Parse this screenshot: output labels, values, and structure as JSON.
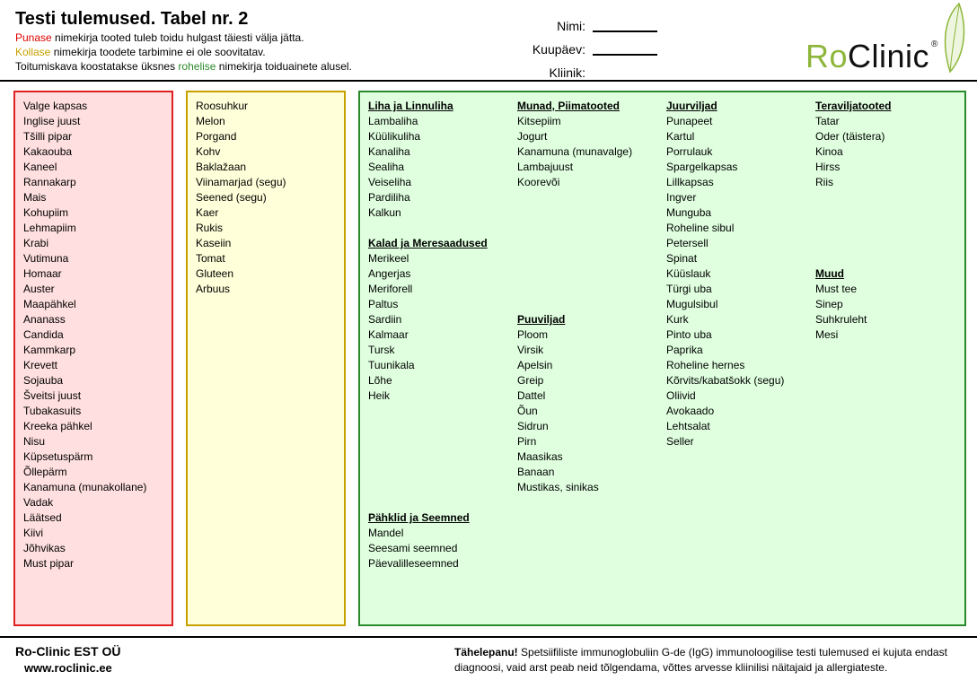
{
  "header": {
    "title": "Testi tulemused. Tabel nr. 2",
    "instructions": {
      "red_word": "Punase",
      "red_rest": " nimekirja tooted tuleb toidu hulgast täiesti välja jätta.",
      "yellow_word": "Kollase",
      "yellow_rest": " nimekirja toodete tarbimine ei ole soovitatav.",
      "green_pre": "Toitumiskava koostatakse üksnes ",
      "green_word": "rohelise",
      "green_rest": " nimekirja toiduainete alusel."
    },
    "fields": {
      "name_label": "Nimi:",
      "date_label": "Kuupäev:",
      "clinic_label": "Kliinik:"
    },
    "logo": {
      "ro": "Ro",
      "clinic": "Clinic",
      "reg": "®"
    }
  },
  "colors": {
    "red": "#e02020",
    "red_bg": "#ffdfdf",
    "yellow": "#c8a000",
    "yellow_bg": "#ffffd9",
    "green": "#2a8a2a",
    "green_bg": "#dfffdf",
    "logo_green": "#8db63a"
  },
  "red_list": [
    "Valge kapsas",
    "Inglise juust",
    "Tšilli pipar",
    "Kakaouba",
    "Kaneel",
    "Rannakarp",
    "Mais",
    "Kohupiim",
    "Lehmapiim",
    "Krabi",
    "Vutimuna",
    "Homaar",
    "Auster",
    "Maapähkel",
    "Ananass",
    "Candida",
    "Kammkarp",
    "Krevett",
    "Sojauba",
    "Šveitsi juust",
    "Tubakasuits",
    "Kreeka pähkel",
    "Nisu",
    "Küpsetuspärm",
    "Õllepärm",
    "Kanamuna (munakollane)",
    "Vadak",
    "Läätsed",
    "Kiivi",
    "Jõhvikas",
    "Must pipar"
  ],
  "yellow_list": [
    "Roosuhkur",
    "Melon",
    "Porgand",
    "Kohv",
    "Baklažaan",
    "Viinamarjad (segu)",
    "Seened (segu)",
    "Kaer",
    "Rukis",
    "Kaseiin",
    "Tomat",
    "Gluteen",
    "Arbuus"
  ],
  "green": {
    "meat": {
      "heading": "Liha ja Linnuliha",
      "items": [
        "Lambaliha",
        "Küülikuliha",
        "Kanaliha",
        "Sealiha",
        "Veiseliha",
        "Pardiliha",
        "Kalkun"
      ]
    },
    "fish": {
      "heading": "Kalad ja Meresaadused",
      "items": [
        "Merikeel",
        "Angerjas",
        "Meriforell",
        "Paltus",
        "Sardiin",
        "Kalmaar",
        "Tursk",
        "Tuunikala",
        "Lõhe",
        "Heik"
      ]
    },
    "nuts": {
      "heading": "Pähklid ja Seemned",
      "items": [
        "Mandel",
        "Seesami seemned",
        "Päevalilleseemned"
      ]
    },
    "eggs": {
      "heading": "Munad, Piimatooted",
      "items": [
        "Kitsepiim",
        "Jogurt",
        "Kanamuna (munavalge)",
        "Lambajuust",
        "Koorevõi"
      ]
    },
    "fruits": {
      "heading": "Puuviljad",
      "items": [
        "Ploom",
        "Virsik",
        "Apelsin",
        "Greip",
        "Dattel",
        "Õun",
        "Sidrun",
        "Pirn",
        "Maasikas",
        "Banaan",
        "Mustikas, sinikas"
      ]
    },
    "veg": {
      "heading": "Juurviljad",
      "items": [
        "Punapeet",
        "Kartul",
        "Porrulauk",
        "Spargelkapsas",
        "Lillkapsas",
        "Ingver",
        "Munguba",
        "Roheline sibul",
        "Petersell",
        "Spinat",
        "Küüslauk",
        "Türgi uba",
        "Mugulsibul",
        "Kurk",
        "Pinto uba",
        "Paprika",
        "Roheline hernes",
        "Kõrvits/kabatšokk (segu)",
        "Oliivid",
        "Avokaado",
        "Lehtsalat",
        "Seller"
      ]
    },
    "grains": {
      "heading": "Teraviljatooted",
      "items": [
        "Tatar",
        "Oder (täistera)",
        "Kinoa",
        "Hirss",
        "Riis"
      ]
    },
    "misc": {
      "heading": "Muud",
      "items": [
        "Must tee",
        "Sinep",
        "Suhkruleht",
        "Mesi"
      ]
    }
  },
  "footer": {
    "company": "Ro-Clinic EST OÜ",
    "website": "www.roclinic.ee",
    "notice_bold": "Tähelepanu!",
    "notice_text": " Spetsiifiliste immunoglobuliin G-de (IgG) immunoloogilise testi tulemused ei kujuta endast diagnoosi, vaid arst peab neid tõlgendama, võttes arvesse kliinilisi näitajaid ja allergiateste."
  }
}
